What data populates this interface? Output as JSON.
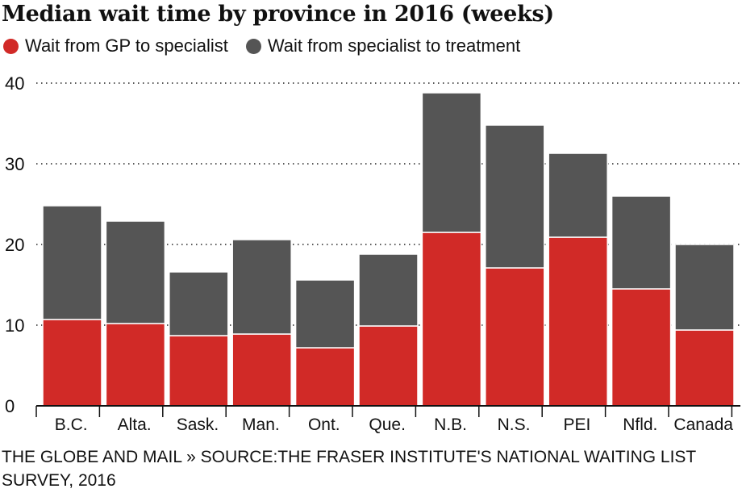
{
  "chart_data": {
    "type": "bar",
    "stacked": true,
    "title": "Median wait time by province in 2016 (weeks)",
    "categories": [
      "B.C.",
      "Alta.",
      "Sask.",
      "Man.",
      "Ont.",
      "Que.",
      "N.B.",
      "N.S.",
      "PEI",
      "Nfld.",
      "Canada"
    ],
    "series": [
      {
        "name": "Wait from GP to specialist",
        "color": "#d12a27",
        "values": [
          10.7,
          10.2,
          8.7,
          8.9,
          7.2,
          9.9,
          21.5,
          17.1,
          20.9,
          14.5,
          9.4
        ]
      },
      {
        "name": "Wait from specialist to treatment",
        "color": "#555555",
        "values": [
          14.1,
          12.7,
          7.9,
          11.7,
          8.4,
          8.9,
          17.3,
          17.7,
          10.4,
          11.5,
          10.6
        ]
      }
    ],
    "yticks": [
      0,
      10,
      20,
      30,
      40
    ],
    "ylim": [
      0,
      40
    ],
    "grid": "dotted horizontal",
    "legend_position": "top-left"
  },
  "source": "THE GLOBE AND MAIL » SOURCE:THE FRASER INSTITUTE'S NATIONAL WAITING LIST SURVEY, 2016"
}
